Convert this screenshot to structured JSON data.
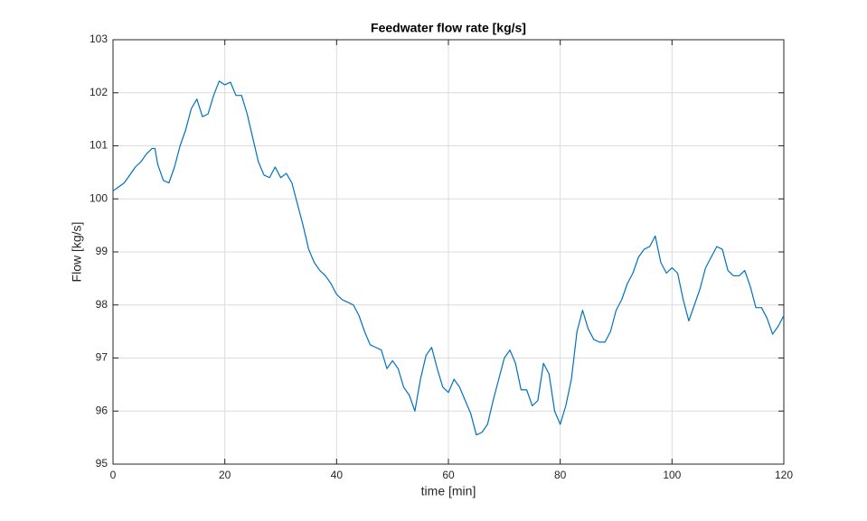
{
  "chart_data": {
    "type": "line",
    "title": "Feedwater flow rate [kg/s]",
    "x_label": "time [min]",
    "y_label": "Flow [kg/s]",
    "x": [
      0,
      2,
      4,
      5,
      6,
      7,
      7.5,
      8,
      9,
      10,
      11,
      12,
      13,
      14,
      15,
      16,
      17,
      18,
      19,
      20,
      21,
      22,
      23,
      24,
      25,
      26,
      27,
      28,
      29,
      30,
      31,
      32,
      33,
      34,
      35,
      36,
      37,
      38,
      39,
      40,
      41,
      42,
      43,
      44,
      45,
      46,
      47,
      48,
      49,
      50,
      51,
      52,
      53,
      54,
      55,
      56,
      57,
      58,
      59,
      60,
      61,
      62,
      63,
      64,
      65,
      66,
      67,
      68,
      69,
      70,
      71,
      72,
      73,
      74,
      75,
      76,
      77,
      78,
      79,
      80,
      81,
      82,
      83,
      84,
      85,
      86,
      87,
      88,
      89,
      90,
      91,
      92,
      93,
      94,
      95,
      96,
      97,
      98,
      99,
      100,
      101,
      102,
      103,
      104,
      105,
      106,
      107,
      108,
      109,
      110,
      111,
      112,
      113,
      114,
      115,
      116,
      117,
      118,
      119,
      120
    ],
    "series": [
      {
        "name": "Flow",
        "color": "#0072bd",
        "values": [
          100.15,
          100.3,
          100.6,
          100.7,
          100.85,
          100.95,
          100.95,
          100.65,
          100.35,
          100.3,
          100.6,
          101.0,
          101.3,
          101.7,
          101.88,
          101.55,
          101.6,
          101.95,
          102.22,
          102.15,
          102.2,
          101.95,
          101.95,
          101.6,
          101.15,
          100.7,
          100.45,
          100.4,
          100.6,
          100.4,
          100.48,
          100.3,
          99.9,
          99.5,
          99.05,
          98.8,
          98.65,
          98.55,
          98.4,
          98.2,
          98.1,
          98.05,
          98.0,
          97.8,
          97.5,
          97.25,
          97.2,
          97.15,
          96.8,
          96.95,
          96.8,
          96.45,
          96.3,
          96.0,
          96.6,
          97.05,
          97.2,
          96.8,
          96.45,
          96.35,
          96.6,
          96.45,
          96.2,
          95.95,
          95.55,
          95.6,
          95.75,
          96.2,
          96.6,
          97.0,
          97.15,
          96.9,
          96.4,
          96.4,
          96.1,
          96.2,
          96.9,
          96.7,
          96.0,
          95.75,
          96.1,
          96.6,
          97.5,
          97.9,
          97.55,
          97.35,
          97.3,
          97.3,
          97.5,
          97.9,
          98.1,
          98.4,
          98.6,
          98.9,
          99.05,
          99.1,
          99.3,
          98.8,
          98.6,
          98.7,
          98.6,
          98.1,
          97.7,
          98.0,
          98.3,
          98.7,
          98.9,
          99.1,
          99.05,
          98.65,
          98.55,
          98.55,
          98.65,
          98.35,
          97.95,
          97.95,
          97.75,
          97.45,
          97.6,
          97.8
        ]
      }
    ],
    "xlim": [
      0,
      120
    ],
    "xticks": [
      0,
      20,
      40,
      60,
      80,
      100,
      120
    ],
    "ylim": [
      95,
      103
    ],
    "yticks": [
      95,
      96,
      97,
      98,
      99,
      100,
      101,
      102,
      103
    ],
    "grid": true
  }
}
